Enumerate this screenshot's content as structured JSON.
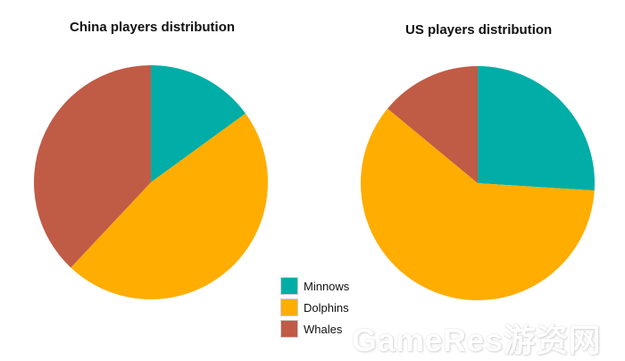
{
  "chart_data": [
    {
      "type": "pie",
      "title": "China players distribution",
      "categories": [
        "Minnows",
        "Dolphins",
        "Whales"
      ],
      "values": [
        15,
        47,
        38
      ]
    },
    {
      "type": "pie",
      "title": "US players distribution",
      "categories": [
        "Minnows",
        "Dolphins",
        "Whales"
      ],
      "values": [
        26,
        60,
        14
      ]
    }
  ],
  "legend": {
    "items": [
      {
        "label": "Minnows",
        "color": "#00ADA7"
      },
      {
        "label": "Dolphins",
        "color": "#FFAD00"
      },
      {
        "label": "Whales",
        "color": "#C05B46"
      }
    ]
  },
  "watermark": "GameRes游资网"
}
